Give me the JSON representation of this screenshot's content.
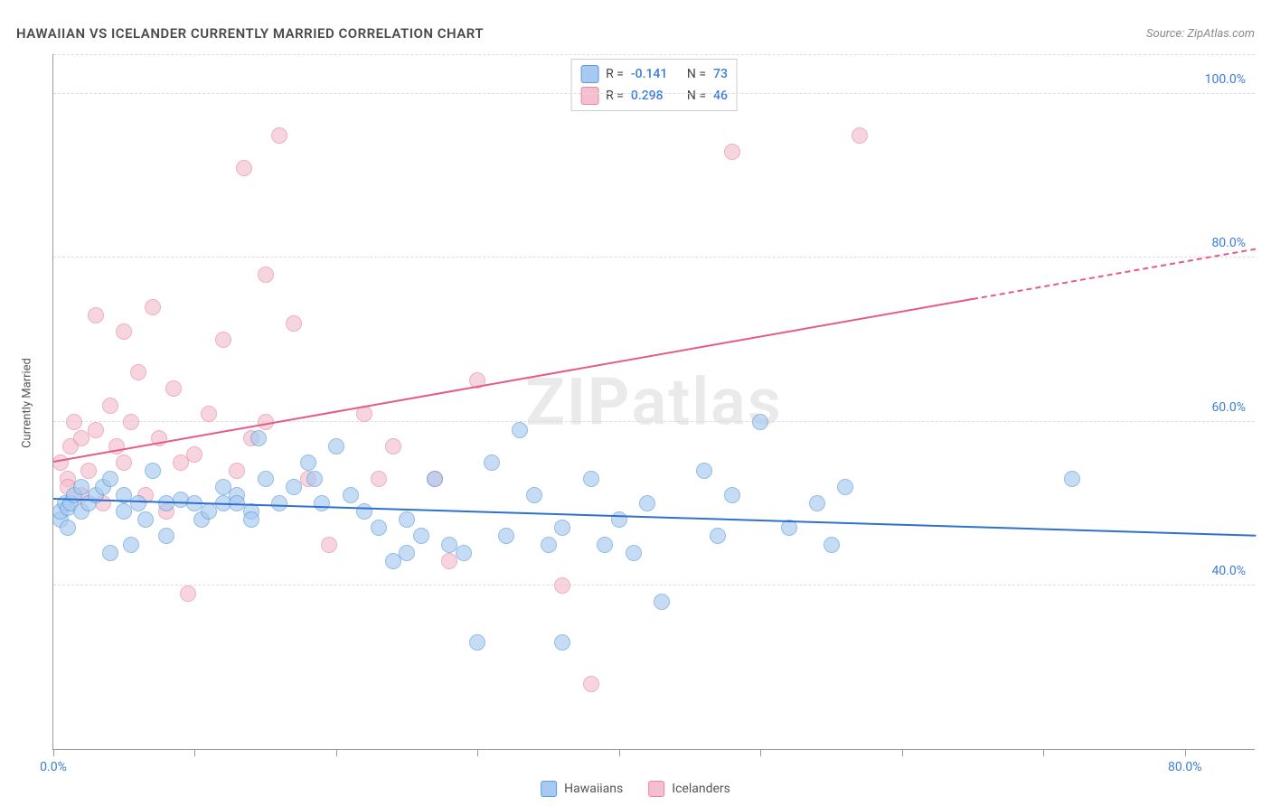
{
  "title": "HAWAIIAN VS ICELANDER CURRENTLY MARRIED CORRELATION CHART",
  "source": "Source: ZipAtlas.com",
  "y_axis_title": "Currently Married",
  "watermark": {
    "zip": "ZIP",
    "atlas": "atlas"
  },
  "colors": {
    "hawaiian_fill": "#a8caf0",
    "hawaiian_stroke": "#5a9bd8",
    "icelander_fill": "#f4bfce",
    "icelander_stroke": "#e8869f",
    "trend_hawaiian": "#2f6fd0",
    "trend_icelander": "#e55b85",
    "axis_text": "#3b7dd8",
    "grid": "#dddddd"
  },
  "chart": {
    "type": "scatter",
    "xlim": [
      0,
      85
    ],
    "ylim": [
      20,
      105
    ],
    "y_ticks": [
      {
        "val": 40,
        "label": "40.0%"
      },
      {
        "val": 60,
        "label": "60.0%"
      },
      {
        "val": 80,
        "label": "80.0%"
      },
      {
        "val": 100,
        "label": "100.0%"
      }
    ],
    "x_ticks": [
      0,
      10,
      20,
      30,
      40,
      50,
      60,
      70,
      80
    ],
    "x_labels": [
      {
        "val": 0,
        "label": "0.0%"
      },
      {
        "val": 80,
        "label": "80.0%"
      }
    ],
    "point_radius": 9,
    "point_opacity": 0.65
  },
  "legend_top": [
    {
      "color_key": "hawaiian",
      "r_label": "R =",
      "r_val": "-0.141",
      "n_label": "N =",
      "n_val": "73"
    },
    {
      "color_key": "icelander",
      "r_label": "R =",
      "r_val": "0.298",
      "n_label": "N =",
      "n_val": "46"
    }
  ],
  "legend_bottom": [
    {
      "color_key": "hawaiian",
      "label": "Hawaiians"
    },
    {
      "color_key": "icelander",
      "label": "Icelanders"
    }
  ],
  "trend_lines": {
    "hawaiian": {
      "x1": 0,
      "y1": 50.5,
      "x2": 85,
      "y2": 46.0,
      "dash_from_x": null
    },
    "icelander": {
      "x1": 0,
      "y1": 55.0,
      "x2": 85,
      "y2": 81.0,
      "dash_from_x": 65
    }
  },
  "series": {
    "hawaiian": [
      [
        0.5,
        48
      ],
      [
        0.5,
        49
      ],
      [
        0.8,
        50
      ],
      [
        1,
        49.5
      ],
      [
        1,
        47
      ],
      [
        1.2,
        50
      ],
      [
        1.5,
        51
      ],
      [
        2,
        49
      ],
      [
        2,
        52
      ],
      [
        2.5,
        50
      ],
      [
        3,
        51
      ],
      [
        3.5,
        52
      ],
      [
        4,
        53
      ],
      [
        4,
        44
      ],
      [
        5,
        51
      ],
      [
        5,
        49
      ],
      [
        5.5,
        45
      ],
      [
        6,
        50
      ],
      [
        6.5,
        48
      ],
      [
        7,
        54
      ],
      [
        8,
        50
      ],
      [
        8,
        46
      ],
      [
        9,
        50.5
      ],
      [
        10,
        50
      ],
      [
        10.5,
        48
      ],
      [
        11,
        49
      ],
      [
        12,
        50
      ],
      [
        12,
        52
      ],
      [
        13,
        51
      ],
      [
        14,
        49
      ],
      [
        14,
        48
      ],
      [
        14.5,
        58
      ],
      [
        15,
        53
      ],
      [
        16,
        50
      ],
      [
        17,
        52
      ],
      [
        18,
        55
      ],
      [
        18.5,
        53
      ],
      [
        19,
        50
      ],
      [
        20,
        57
      ],
      [
        21,
        51
      ],
      [
        22,
        49
      ],
      [
        23,
        47
      ],
      [
        24,
        43
      ],
      [
        25,
        48
      ],
      [
        25,
        44
      ],
      [
        26,
        46
      ],
      [
        27,
        53
      ],
      [
        28,
        45
      ],
      [
        29,
        44
      ],
      [
        30,
        33
      ],
      [
        31,
        55
      ],
      [
        32,
        46
      ],
      [
        33,
        59
      ],
      [
        34,
        51
      ],
      [
        35,
        45
      ],
      [
        36,
        47
      ],
      [
        36,
        33
      ],
      [
        38,
        53
      ],
      [
        39,
        45
      ],
      [
        40,
        48
      ],
      [
        41,
        44
      ],
      [
        42,
        50
      ],
      [
        43,
        38
      ],
      [
        46,
        54
      ],
      [
        47,
        46
      ],
      [
        48,
        51
      ],
      [
        50,
        60
      ],
      [
        52,
        47
      ],
      [
        54,
        50
      ],
      [
        55,
        45
      ],
      [
        56,
        52
      ],
      [
        72,
        53
      ],
      [
        13,
        50
      ]
    ],
    "icelander": [
      [
        0.5,
        55
      ],
      [
        1,
        53
      ],
      [
        1,
        52
      ],
      [
        1.2,
        57
      ],
      [
        1.5,
        60
      ],
      [
        2,
        51
      ],
      [
        2,
        58
      ],
      [
        2.5,
        54
      ],
      [
        3,
        73
      ],
      [
        3,
        59
      ],
      [
        3.5,
        50
      ],
      [
        4,
        62
      ],
      [
        4.5,
        57
      ],
      [
        5,
        71
      ],
      [
        5,
        55
      ],
      [
        5.5,
        60
      ],
      [
        6,
        66
      ],
      [
        6.5,
        51
      ],
      [
        7,
        74
      ],
      [
        7.5,
        58
      ],
      [
        8,
        49
      ],
      [
        8.5,
        64
      ],
      [
        9,
        55
      ],
      [
        9.5,
        39
      ],
      [
        10,
        56
      ],
      [
        11,
        61
      ],
      [
        12,
        70
      ],
      [
        13,
        54
      ],
      [
        13.5,
        91
      ],
      [
        14,
        58
      ],
      [
        15,
        60
      ],
      [
        15,
        78
      ],
      [
        16,
        95
      ],
      [
        17,
        72
      ],
      [
        18,
        53
      ],
      [
        19.5,
        45
      ],
      [
        22,
        61
      ],
      [
        23,
        53
      ],
      [
        24,
        57
      ],
      [
        27,
        53
      ],
      [
        28,
        43
      ],
      [
        30,
        65
      ],
      [
        36,
        40
      ],
      [
        38,
        28
      ],
      [
        48,
        93
      ],
      [
        57,
        95
      ]
    ]
  }
}
